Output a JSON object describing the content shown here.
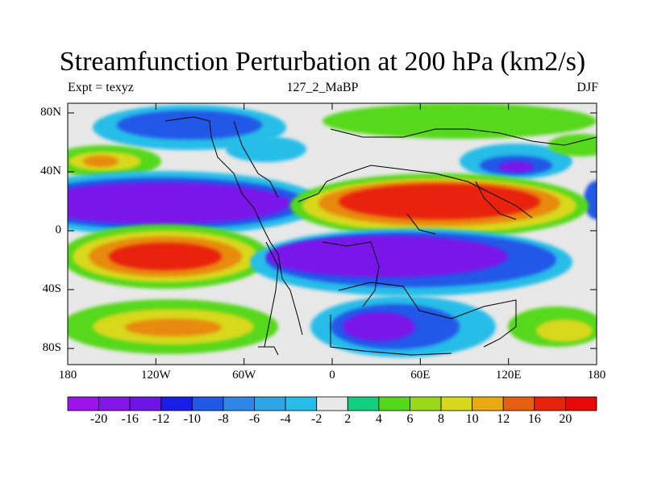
{
  "title": "Streamfunction Perturbation at 200 hPa (km2/s)",
  "subtitle_left": "Expt = texyz",
  "subtitle_center": "127_2_MaBP",
  "subtitle_right": "DJF",
  "lat_labels": [
    "80N",
    "40N",
    "0",
    "40S",
    "80S"
  ],
  "lon_labels": [
    "180",
    "120W",
    "60W",
    "0",
    "60E",
    "120E",
    "180"
  ],
  "colorbar": {
    "labels": [
      "-20",
      "-16",
      "-12",
      "-10",
      "-8",
      "-6",
      "-4",
      "-2",
      "2",
      "4",
      "6",
      "8",
      "10",
      "12",
      "16",
      "20"
    ],
    "colors": [
      "#9b12ea",
      "#8316e6",
      "#6e14e6",
      "#1a1ce8",
      "#2158e8",
      "#2f86e8",
      "#2ea6e6",
      "#26bde8",
      "#e8e8e8",
      "#10d080",
      "#56d81a",
      "#9ad81a",
      "#d8d81a",
      "#e8aa10",
      "#e85e10",
      "#e8200c",
      "#e80808"
    ]
  },
  "map_colors": {
    "background": "#e8e8e8",
    "strong_neg": "#7a14ea",
    "mid_neg": "#2158e8",
    "weak_neg": "#26bde8",
    "weak_pos": "#56d81a",
    "mid_pos": "#d8d81a",
    "orange": "#e88a10",
    "strong_pos": "#e8200c",
    "coast": "#000000"
  }
}
